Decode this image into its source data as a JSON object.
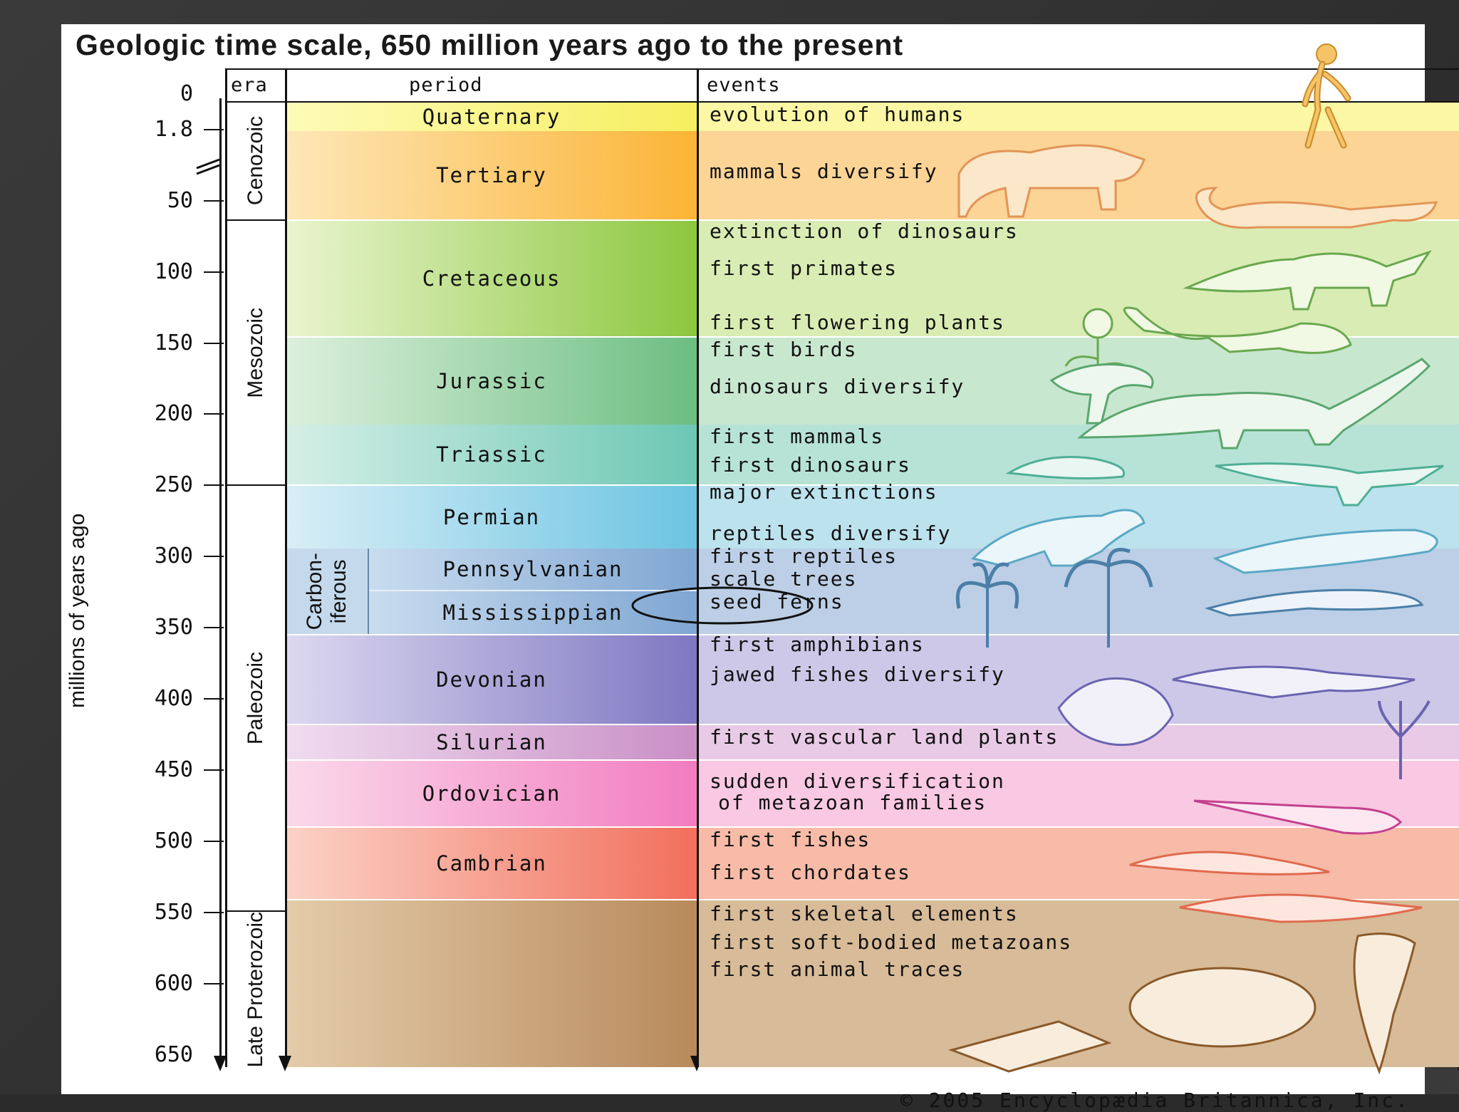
{
  "title": "Geologic time scale, 650 million years ago to the present",
  "axis_label": "millions of years ago",
  "headers": {
    "era": "era",
    "period": "period",
    "events": "events"
  },
  "ticks": [
    "0",
    "1.8",
    "50",
    "100",
    "150",
    "200",
    "250",
    "300",
    "350",
    "400",
    "450",
    "500",
    "550",
    "600",
    "650"
  ],
  "eras": [
    "Cenozoic",
    "Mesozoic",
    "Paleozoic",
    "Late Proterozoic"
  ],
  "periods": [
    "Quaternary",
    "Tertiary",
    "Cretaceous",
    "Jurassic",
    "Triassic",
    "Permian",
    "Pennsylvanian",
    "Mississippian",
    "Devonian",
    "Silurian",
    "Ordovician",
    "Cambrian"
  ],
  "carboniferous_label": "Carbon-\niferous",
  "events": [
    "evolution of humans",
    "mammals diversify",
    "extinction of dinosaurs",
    "first primates",
    "first flowering plants",
    "first birds",
    "dinosaurs diversify",
    "first mammals",
    "first dinosaurs",
    "major extinctions",
    "reptiles diversify",
    "first reptiles",
    "scale trees",
    "seed ferns",
    "first amphibians",
    "jawed fishes diversify",
    "first vascular land plants",
    "sudden diversification",
    "of metazoan families",
    "first fishes",
    "first chordates",
    "first skeletal elements",
    "first soft-bodied metazoans",
    "first animal traces"
  ],
  "copyright": "© 2005 Encyclopædia Britannica, Inc.",
  "colors": {
    "quaternary": "#fbf79a",
    "tertiary": "#fbd08e",
    "cretaceous": "#d7ebb0",
    "jurassic": "#c7e6cc",
    "triassic": "#b5e2d5",
    "permian": "#b9e1ec",
    "carboniferous": "#b8cfe6",
    "devonian": "#cbc6e8",
    "silurian": "#e6c8e4",
    "ordovician": "#f8c4e0",
    "cambrian": "#f8b8a8",
    "proterozoic": "#d7b994"
  },
  "icons": [
    "human-figure-icon",
    "rhino-mammal-icon",
    "dinosaur-icon",
    "fern-tree-icon",
    "fish-icon",
    "shell-icon"
  ]
}
